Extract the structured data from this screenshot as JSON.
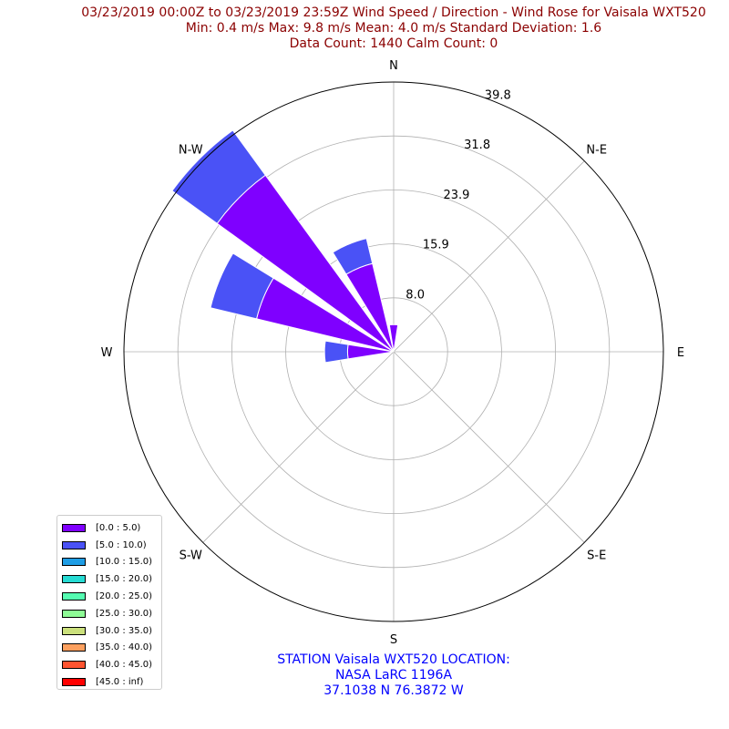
{
  "title_lines": [
    "03/23/2019 00:00Z to 03/23/2019 23:59Z Wind Speed / Direction - Wind Rose for Vaisala WXT520",
    "Min: 0.4 m/s   Max: 9.8 m/s   Mean: 4.0 m/s  Standard Deviation: 1.6",
    "Data Count: 1440  Calm Count:  0"
  ],
  "station_lines": [
    "STATION Vaisala WXT520 LOCATION:",
    "NASA LaRC 1196A",
    "37.1038 N 76.3872 W"
  ],
  "chart_data": {
    "type": "wind_rose",
    "direction_labels": [
      "N",
      "N-E",
      "E",
      "S-E",
      "S",
      "S-W",
      "W",
      "N-W"
    ],
    "radial_ticks": [
      "8.0",
      "15.9",
      "23.9",
      "31.8",
      "39.8"
    ],
    "radial_tick_values": [
      7.96,
      15.92,
      23.88,
      31.84,
      39.8
    ],
    "rmax": 39.8,
    "grid": true,
    "legend_position": "lower-left",
    "bins": [
      {
        "label": "[0.0 : 5.0)",
        "color": "#7f00ff"
      },
      {
        "label": "[5.0 : 10.0)",
        "color": "#4a52f6"
      },
      {
        "label": "[10.0 : 15.0)",
        "color": "#1e9de5"
      },
      {
        "label": "[15.0 : 20.0)",
        "color": "#26dbd3"
      },
      {
        "label": "[20.0 : 25.0)",
        "color": "#55fcb1"
      },
      {
        "label": "[25.0 : 30.0)",
        "color": "#8efc96"
      },
      {
        "label": "[30.0 : 35.0)",
        "color": "#cbe07c"
      },
      {
        "label": "[35.0 : 40.0)",
        "color": "#fda05f"
      },
      {
        "label": "[40.0 : 45.0)",
        "color": "#ff5430"
      },
      {
        "label": "[45.0 : inf)",
        "color": "#ff0000"
      }
    ],
    "sectors": [
      {
        "direction": 0,
        "stack": [
          4.0,
          0.0
        ]
      },
      {
        "direction": 22.5,
        "stack": [
          0.0,
          0.0
        ]
      },
      {
        "direction": 45,
        "stack": [
          0.0,
          0.0
        ]
      },
      {
        "direction": 67.5,
        "stack": [
          0.0,
          0.0
        ]
      },
      {
        "direction": 90,
        "stack": [
          0.0,
          0.0
        ]
      },
      {
        "direction": 112.5,
        "stack": [
          0.0,
          0.0
        ]
      },
      {
        "direction": 135,
        "stack": [
          0.0,
          0.0
        ]
      },
      {
        "direction": 157.5,
        "stack": [
          0.0,
          0.0
        ]
      },
      {
        "direction": 180,
        "stack": [
          0.0,
          0.0
        ]
      },
      {
        "direction": 202.5,
        "stack": [
          0.0,
          0.0
        ]
      },
      {
        "direction": 225,
        "stack": [
          0.0,
          0.0
        ]
      },
      {
        "direction": 247.5,
        "stack": [
          0.0,
          0.0
        ]
      },
      {
        "direction": 270,
        "stack": [
          6.8,
          3.4
        ]
      },
      {
        "direction": 292.5,
        "stack": [
          20.8,
          7.0
        ]
      },
      {
        "direction": 315,
        "stack": [
          32.2,
          8.2
        ]
      },
      {
        "direction": 337.5,
        "stack": [
          13.4,
          3.8
        ]
      }
    ]
  }
}
